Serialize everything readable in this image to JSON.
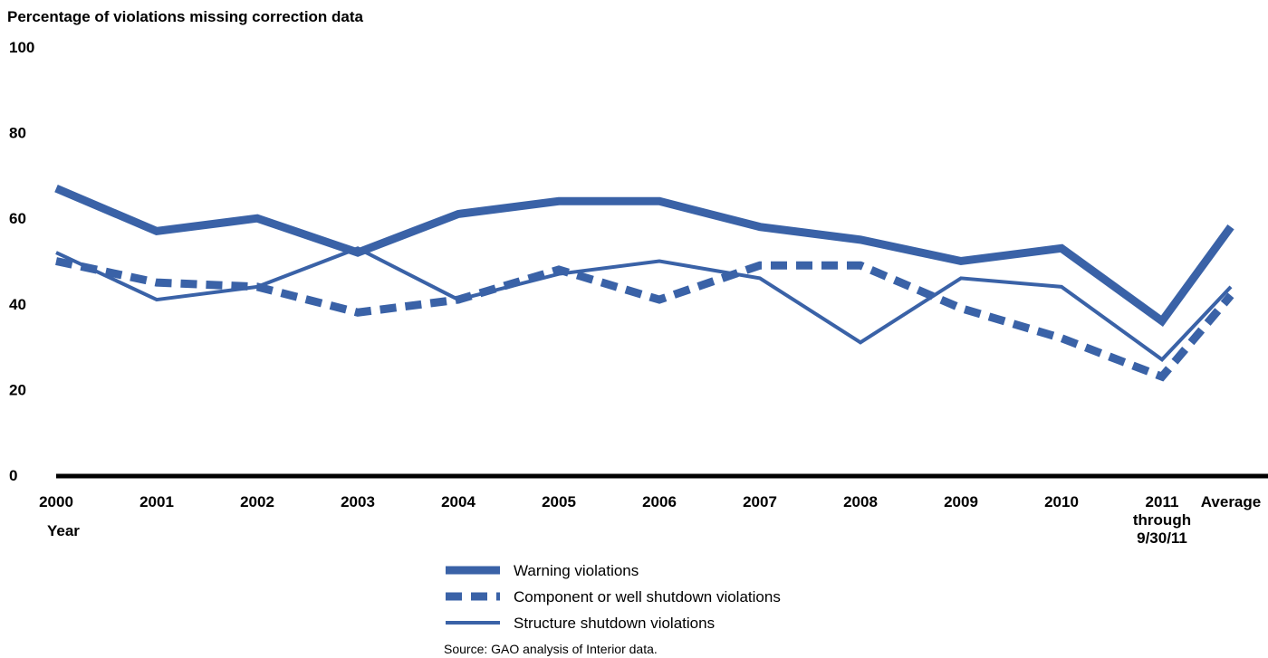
{
  "chart_data": {
    "type": "line",
    "ylabel": "Percentage of violations missing correction data",
    "xlabel": "Year",
    "ylim": [
      0,
      100
    ],
    "y_ticks": [
      "0",
      "20",
      "40",
      "60",
      "80",
      "100"
    ],
    "categories": [
      "2000",
      "2001",
      "2002",
      "2003",
      "2004",
      "2005",
      "2006",
      "2007",
      "2008",
      "2009",
      "2010",
      "2011 through 9/30/11",
      "Average"
    ],
    "category_lines": [
      [
        "2000"
      ],
      [
        "2001"
      ],
      [
        "2002"
      ],
      [
        "2003"
      ],
      [
        "2004"
      ],
      [
        "2005"
      ],
      [
        "2006"
      ],
      [
        "2007"
      ],
      [
        "2008"
      ],
      [
        "2009"
      ],
      [
        "2010"
      ],
      [
        "2011",
        "through",
        "9/30/11"
      ],
      [
        "Average"
      ]
    ],
    "series": [
      {
        "name": "Warning violations",
        "style": "thick",
        "color": "#3a62a7",
        "values": [
          67,
          57,
          60,
          52,
          61,
          64,
          64,
          58,
          55,
          50,
          53,
          36,
          58
        ]
      },
      {
        "name": "Component or well shutdown violations",
        "style": "dashed",
        "color": "#3a62a7",
        "values": [
          50,
          45,
          44,
          38,
          41,
          48,
          41,
          49,
          49,
          39,
          32,
          23,
          42
        ]
      },
      {
        "name": "Structure shutdown violations",
        "style": "thin",
        "color": "#3a62a7",
        "values": [
          52,
          41,
          44,
          53,
          41,
          47,
          50,
          46,
          31,
          46,
          44,
          27,
          44
        ]
      }
    ],
    "grid": false,
    "legend_position": "bottom-center",
    "source": "Source: GAO analysis of Interior data."
  }
}
